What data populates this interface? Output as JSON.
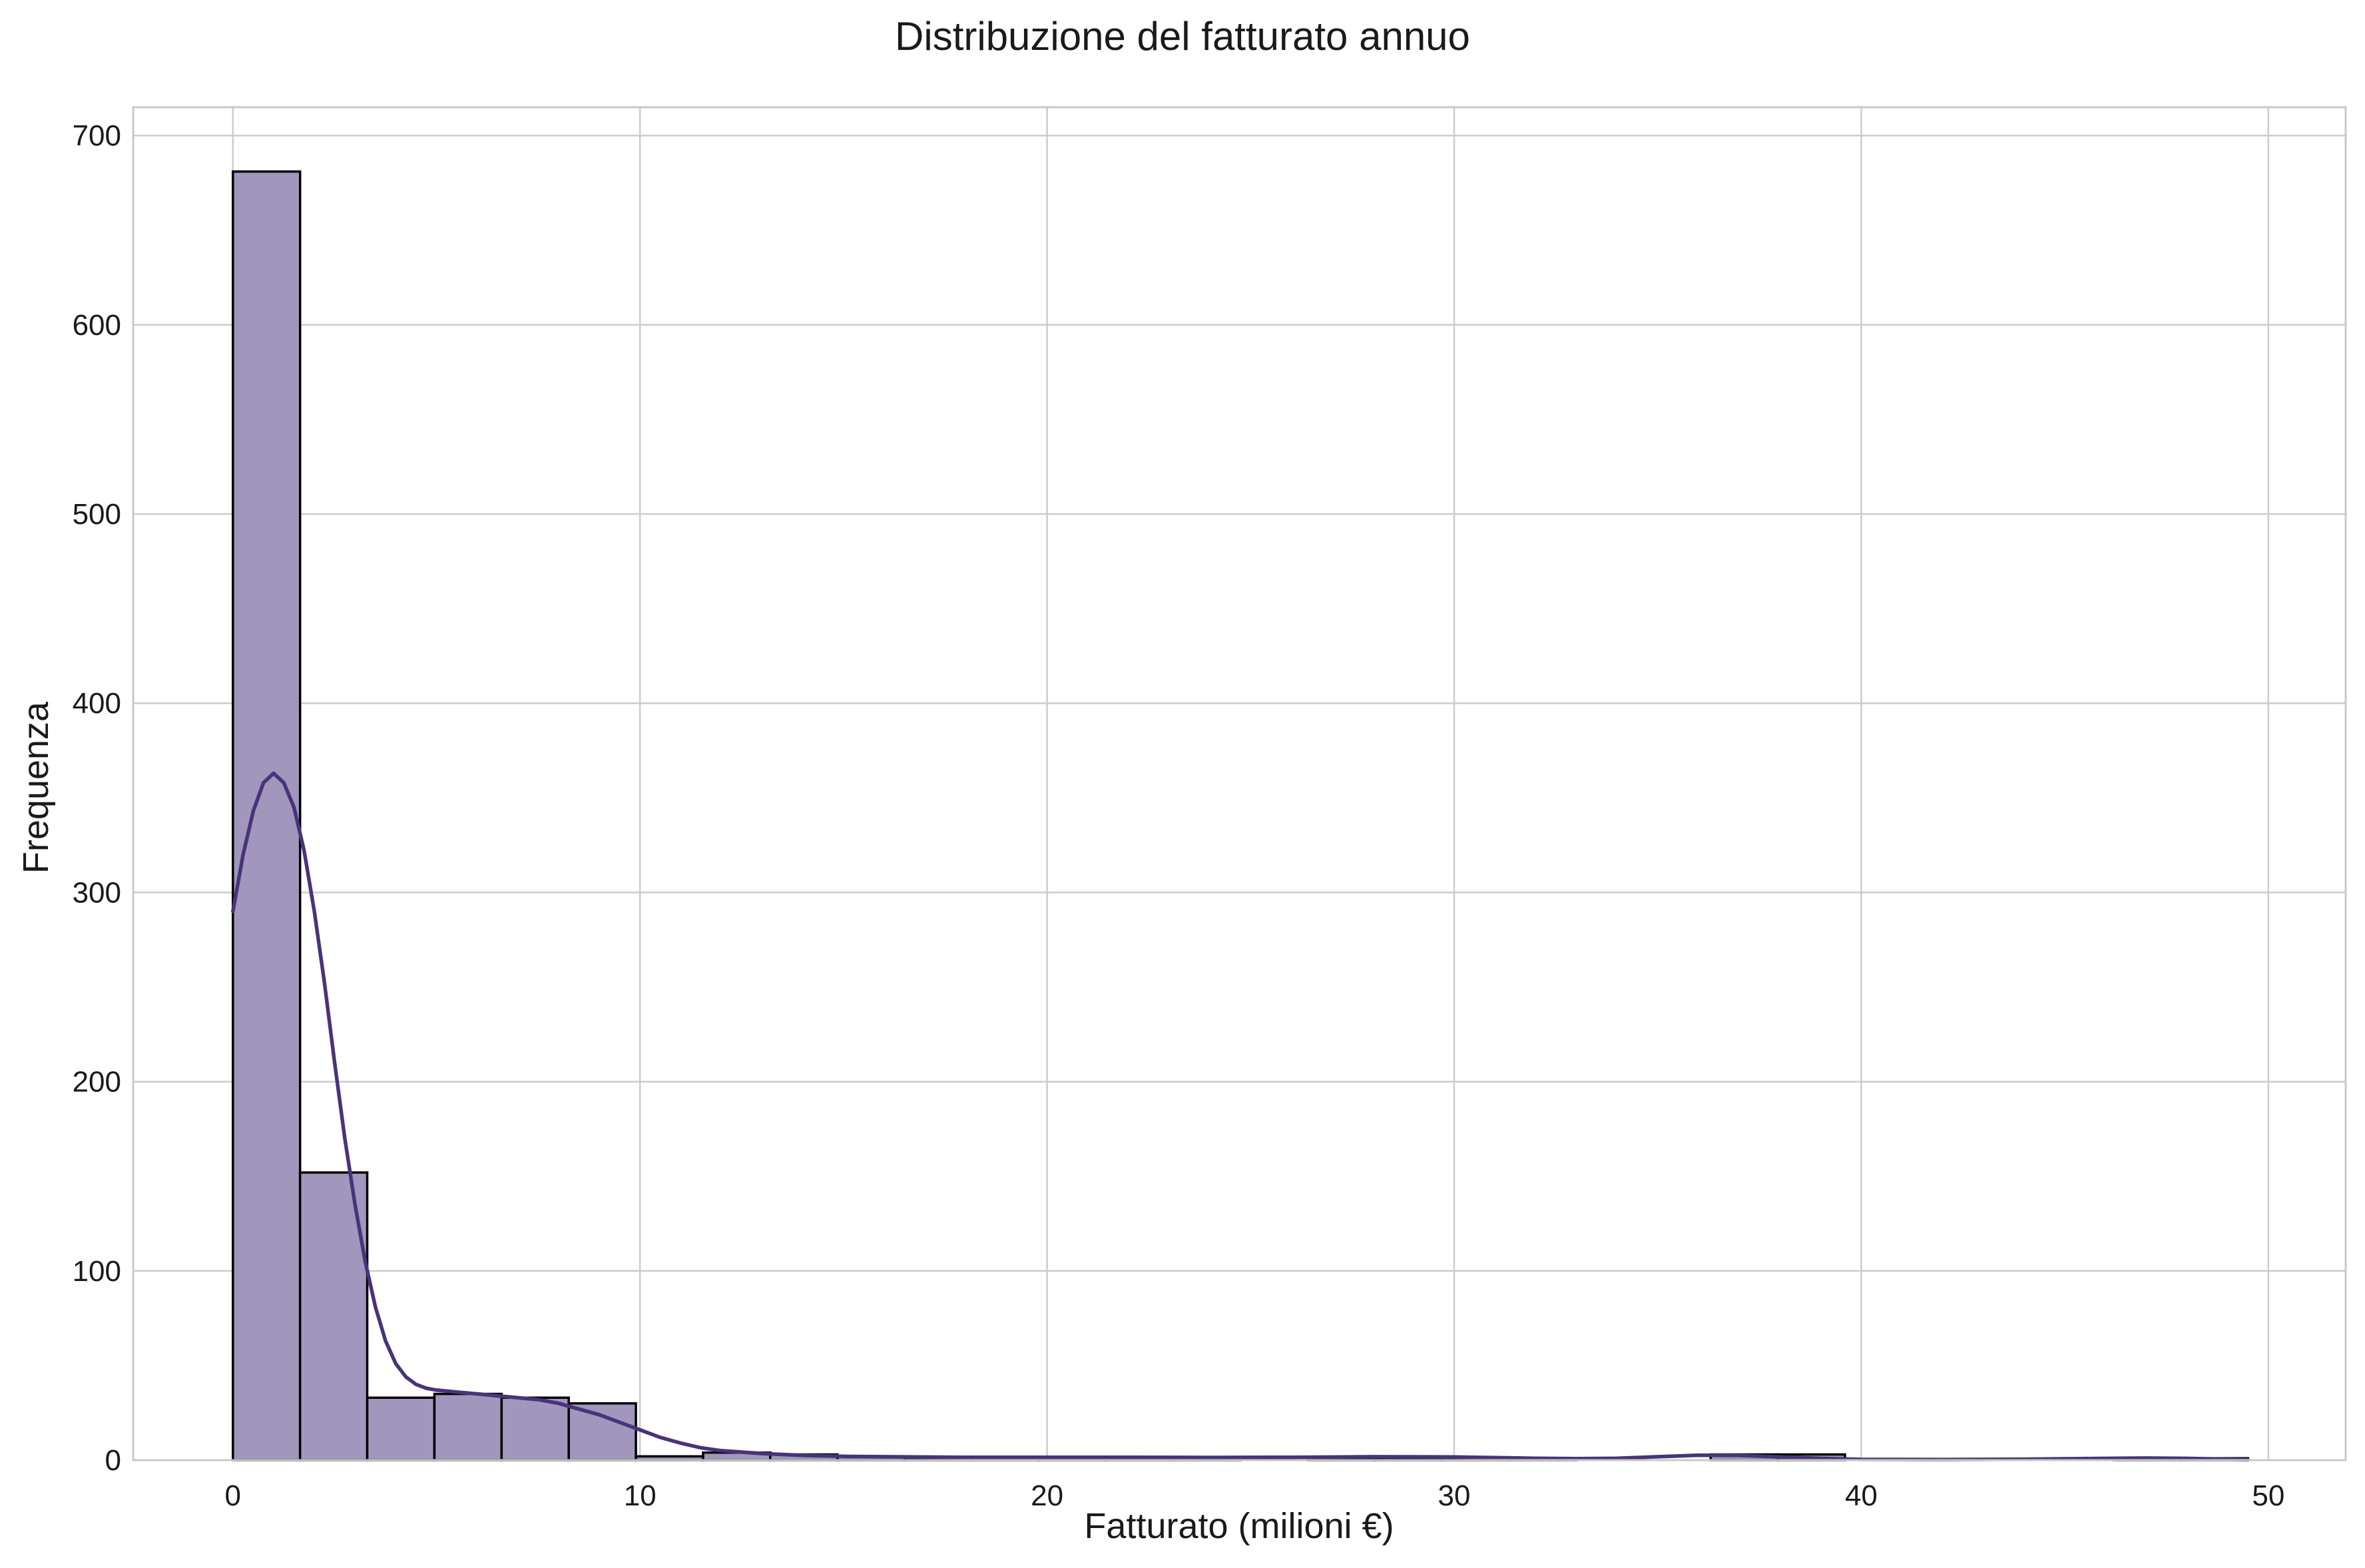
{
  "chart_data": {
    "type": "bar",
    "title": "Distribuzione del fatturato annuo",
    "xlabel": "Fatturato (milioni €)",
    "ylabel": "Frequenza",
    "xlim": [
      -2.45,
      51.9
    ],
    "ylim": [
      0,
      715
    ],
    "xticks": [
      0,
      10,
      20,
      30,
      40,
      50
    ],
    "yticks": [
      0,
      100,
      200,
      300,
      400,
      500,
      600,
      700
    ],
    "grid": true,
    "bin_edges": [
      0,
      1.65,
      3.3,
      4.95,
      6.6,
      8.25,
      9.9,
      11.55,
      13.2,
      14.85,
      16.5,
      18.15,
      19.8,
      21.45,
      23.1,
      24.75,
      26.4,
      28.05,
      29.7,
      31.35,
      33.0,
      34.65,
      36.3,
      37.95,
      39.6,
      41.25,
      42.9,
      44.55,
      46.2,
      47.85,
      49.5
    ],
    "values": [
      681,
      152,
      33,
      35,
      33,
      30,
      2,
      4,
      3,
      2,
      1,
      1,
      1,
      1,
      1,
      0,
      1,
      1,
      1,
      1,
      0,
      0,
      3,
      3,
      0,
      0,
      0,
      0,
      1,
      1
    ],
    "kde": {
      "x": [
        0,
        0.25,
        0.5,
        0.75,
        1.0,
        1.25,
        1.5,
        1.75,
        2.0,
        2.25,
        2.5,
        2.75,
        3.0,
        3.25,
        3.5,
        3.75,
        4.0,
        4.25,
        4.5,
        4.75,
        5.0,
        5.5,
        6.0,
        6.5,
        7.0,
        7.5,
        8.0,
        8.5,
        9.0,
        9.5,
        10.0,
        10.5,
        11.0,
        11.5,
        12.0,
        13.0,
        14.0,
        15.0,
        16.0,
        18.0,
        20.0,
        22.0,
        24.0,
        26.0,
        28.0,
        30.0,
        32.0,
        33.0,
        34.0,
        35.0,
        36.0,
        37.0,
        38.0,
        39.0,
        40.0,
        42.0,
        44.0,
        46.0,
        47.0,
        48.0,
        49.5
      ],
      "y": [
        290,
        320,
        343,
        358,
        363,
        358,
        345,
        322,
        290,
        252,
        210,
        170,
        135,
        105,
        81,
        63,
        51,
        44,
        40,
        38,
        37,
        36,
        35,
        34,
        33,
        32,
        30,
        27,
        24,
        20,
        16,
        12,
        9,
        6.5,
        5,
        3.5,
        2.5,
        2,
        1.8,
        1.5,
        1.5,
        1.5,
        1.4,
        1.5,
        1.8,
        1.7,
        1.0,
        0.8,
        1.0,
        1.8,
        2.6,
        2.5,
        1.7,
        0.9,
        0.4,
        0.3,
        0.5,
        0.9,
        1.1,
        0.9,
        0.2
      ]
    },
    "colors": {
      "bar_fill": "#a197bd",
      "bar_edge": "#000000",
      "kde_line": "#483479",
      "grid": "#cccccc",
      "spine": "#c8c8c8"
    }
  }
}
